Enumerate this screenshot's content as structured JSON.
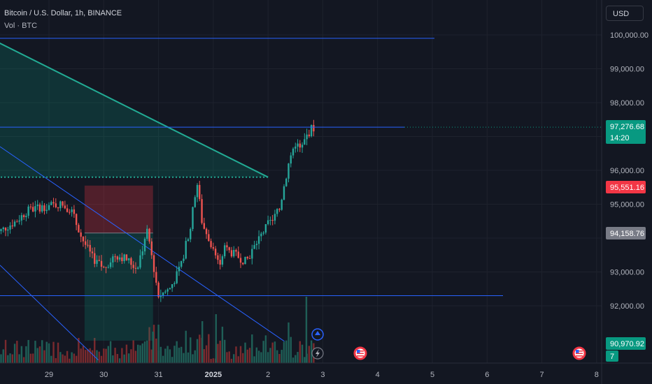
{
  "legend": {
    "symbol": "Bitcoin / U.S. Dollar, 1h, BINANCE",
    "volume": "Vol · BTC"
  },
  "currency": "USD",
  "colors": {
    "up": "#26a69a",
    "down": "#ef5350",
    "up_vol": "#1f5f57",
    "down_vol": "#7a2a2e",
    "line_blue": "#2962ff",
    "teal_line": "#089981",
    "background": "#131722"
  },
  "price_badges": {
    "current": {
      "value": "97,276.68",
      "countdown": "14:20",
      "color": "#089981"
    },
    "red": {
      "value": "95,551.16",
      "color": "#f23645"
    },
    "gray": {
      "value": "94,158.76",
      "color": "#787b86"
    },
    "volume": {
      "value": "90,970.92",
      "count": "7",
      "color": "#089981"
    }
  },
  "icons": {
    "up_arrow": "up-arrow-icon",
    "lightning": "lightning-icon",
    "flag": "us-flag-icon"
  },
  "chart_data": {
    "type": "candlestick",
    "title": "Bitcoin / U.S. Dollar, 1h, BINANCE",
    "y_ticks": [
      "100,000.00",
      "99,000.00",
      "98,000.00",
      "96,000.00",
      "95,000.00",
      "93,000.00",
      "92,000.00"
    ],
    "y_tick_values": [
      100000,
      99000,
      98000,
      96000,
      95000,
      93000,
      92000
    ],
    "x_ticks": [
      {
        "label": "29",
        "day": 29
      },
      {
        "label": "30",
        "day": 30
      },
      {
        "label": "31",
        "day": 31
      },
      {
        "label": "2025",
        "day": 32,
        "bold": true
      },
      {
        "label": "2",
        "day": 33
      },
      {
        "label": "3",
        "day": 34
      },
      {
        "label": "4",
        "day": 35
      },
      {
        "label": "5",
        "day": 36
      },
      {
        "label": "6",
        "day": 37
      },
      {
        "label": "7",
        "day": 38
      },
      {
        "label": "8",
        "day": 39
      }
    ],
    "close_path": [
      [
        28.0,
        94100
      ],
      [
        28.2,
        94300
      ],
      [
        28.4,
        94500
      ],
      [
        28.6,
        94800
      ],
      [
        28.8,
        94900
      ],
      [
        29.0,
        94950
      ],
      [
        29.2,
        95000
      ],
      [
        29.4,
        94850
      ],
      [
        29.6,
        94000
      ],
      [
        29.8,
        93400
      ],
      [
        30.0,
        93100
      ],
      [
        30.2,
        93500
      ],
      [
        30.4,
        93400
      ],
      [
        30.6,
        93100
      ],
      [
        30.8,
        94200
      ],
      [
        31.0,
        92300
      ],
      [
        31.2,
        92500
      ],
      [
        31.4,
        93100
      ],
      [
        31.6,
        94500
      ],
      [
        31.7,
        95700
      ],
      [
        31.8,
        94400
      ],
      [
        32.0,
        93700
      ],
      [
        32.1,
        93200
      ],
      [
        32.2,
        93700
      ],
      [
        32.4,
        93500
      ],
      [
        32.6,
        93300
      ],
      [
        32.8,
        93900
      ],
      [
        33.0,
        94400
      ],
      [
        33.2,
        94800
      ],
      [
        33.3,
        95600
      ],
      [
        33.4,
        96400
      ],
      [
        33.5,
        96800
      ],
      [
        33.6,
        96600
      ],
      [
        33.7,
        97000
      ],
      [
        33.8,
        97250
      ]
    ],
    "horizontal_levels": [
      99900,
      97276.68,
      92300
    ],
    "triangle": {
      "left_day": 27.8,
      "top_price": 100000,
      "right_day": 33.0,
      "base_price": 95800
    },
    "range_box": {
      "start_day": 29.65,
      "end_day": 30.9,
      "top": 95550,
      "mid": 94150,
      "bottom": 90970
    }
  }
}
